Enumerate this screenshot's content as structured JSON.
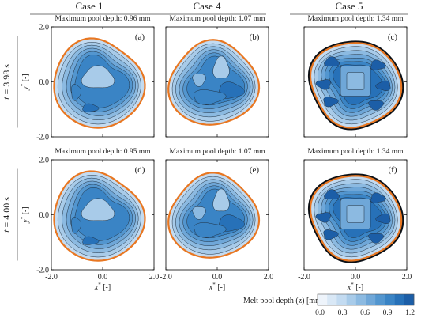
{
  "columns": [
    {
      "title": "Case 1"
    },
    {
      "title": "Case 4"
    },
    {
      "title": "Case 5"
    }
  ],
  "rows": [
    {
      "t_symbol": "t",
      "t_value": " = 3.98 s"
    },
    {
      "t_symbol": "t",
      "t_value": " = 4.00 s"
    }
  ],
  "panels": [
    {
      "label": "(a)",
      "subtitle": "Maximum pool depth: 0.96 mm",
      "case": 1
    },
    {
      "label": "(b)",
      "subtitle": "Maximum pool depth: 1.07 mm",
      "case": 4
    },
    {
      "label": "(c)",
      "subtitle": "Maximum pool depth: 1.34 mm",
      "case": 5
    },
    {
      "label": "(d)",
      "subtitle": "Maximum pool depth: 0.95 mm",
      "case": 1
    },
    {
      "label": "(e)",
      "subtitle": "Maximum pool depth: 1.07 mm",
      "case": 4
    },
    {
      "label": "(f)",
      "subtitle": "Maximum pool depth: 1.34 mm",
      "case": 5
    }
  ],
  "axes": {
    "y_label_base": "y",
    "y_label_unit": " [-]",
    "x_label_base": "x",
    "x_label_unit": " [-]",
    "star": "*",
    "xlim": [
      -2.0,
      2.0
    ],
    "ylim": [
      -2.0,
      2.0
    ],
    "x_ticks": [
      "-2.0",
      "0.0",
      "2.0"
    ],
    "y_ticks": [
      "2.0",
      "0.0",
      "-2.0"
    ]
  },
  "colorbar": {
    "title": "Melt pool depth (z) [mm]",
    "ticks": [
      "0.0",
      "0.3",
      "0.6",
      "0.9",
      "1.2"
    ],
    "range": [
      0.0,
      1.2
    ],
    "colors": [
      "#eef4fb",
      "#d9e8f6",
      "#c3dbf1",
      "#a8cbe9",
      "#8cbae1",
      "#6fa7d8",
      "#5396cf",
      "#3a84c5",
      "#2771b8",
      "#1c5ea7"
    ]
  },
  "colors": {
    "boundary_orange": "#e87722",
    "contour_line": "#1f2f3f",
    "outer_dark": "#0b1016"
  }
}
